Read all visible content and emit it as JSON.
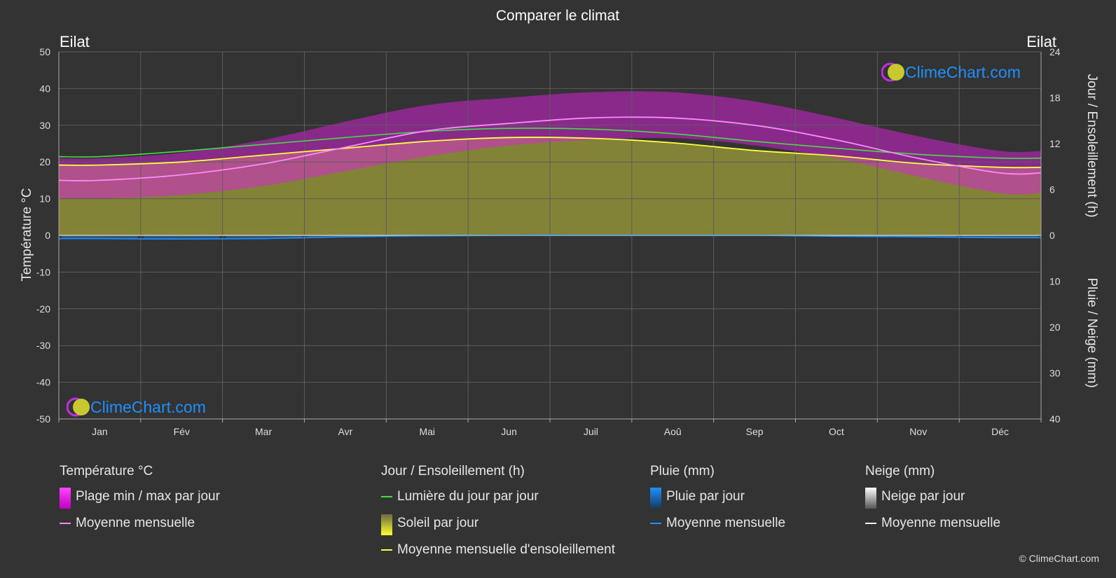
{
  "title": "Comparer le climat",
  "location_left": "Eilat",
  "location_right": "Eilat",
  "logo_text": "ClimeChart.com",
  "copyright": "© ClimeChart.com",
  "colors": {
    "background": "#333333",
    "temp_range": "#e020e0",
    "temp_mean": "#ff88ff",
    "daylight": "#44dd44",
    "sunshine_fill": "#b5b53a",
    "sunshine_mean": "#ffff44",
    "rain": "#1e90ff",
    "snow": "#ffffff"
  },
  "legend": {
    "temperature": {
      "heading": "Température °C",
      "range": "Plage min / max par jour",
      "mean": "Moyenne mensuelle"
    },
    "sun": {
      "heading": "Jour / Ensoleillement (h)",
      "daylight": "Lumière du jour par jour",
      "sunshine": "Soleil par jour",
      "sunshine_mean": "Moyenne mensuelle d'ensoleillement"
    },
    "rain": {
      "heading": "Pluie (mm)",
      "daily": "Pluie par jour",
      "mean": "Moyenne mensuelle"
    },
    "snow": {
      "heading": "Neige (mm)",
      "daily": "Neige par jour",
      "mean": "Moyenne mensuelle"
    }
  },
  "chart_data": {
    "type": "area",
    "title": "Comparer le climat",
    "categories": [
      "Jan",
      "Fév",
      "Mar",
      "Avr",
      "Mai",
      "Jun",
      "Juil",
      "Aoû",
      "Sep",
      "Oct",
      "Nov",
      "Déc"
    ],
    "y_left": {
      "label": "Température °C",
      "range": [
        -50,
        50
      ],
      "ticks": [
        50,
        40,
        30,
        20,
        10,
        0,
        -10,
        -20,
        -30,
        -40,
        -50
      ]
    },
    "y_right_top": {
      "label": "Jour / Ensoleillement (h)",
      "range": [
        0,
        24
      ],
      "ticks": [
        24,
        18,
        12,
        6,
        0
      ]
    },
    "y_right_bottom": {
      "label": "Pluie / Neige (mm)",
      "range": [
        0,
        40
      ],
      "ticks": [
        0,
        10,
        20,
        30,
        40
      ]
    },
    "grid": true,
    "series": [
      {
        "name": "Moyenne mensuelle",
        "group": "temperature",
        "unit": "°C",
        "values": [
          15.0,
          16.5,
          19.5,
          24.0,
          28.5,
          30.5,
          32.0,
          32.0,
          30.0,
          26.0,
          21.0,
          17.0
        ]
      },
      {
        "name": "Plage min / max par jour",
        "group": "temperature",
        "unit": "°C",
        "min": [
          10.0,
          11.0,
          13.5,
          17.5,
          21.5,
          24.5,
          26.0,
          26.5,
          24.5,
          21.0,
          16.0,
          11.5
        ],
        "max": [
          21.0,
          22.5,
          26.0,
          31.0,
          35.5,
          37.5,
          39.0,
          39.0,
          36.5,
          32.0,
          27.0,
          23.0
        ]
      },
      {
        "name": "Lumière du jour par jour",
        "group": "sun",
        "unit": "h",
        "values": [
          10.3,
          11.0,
          11.9,
          12.8,
          13.6,
          14.0,
          13.9,
          13.3,
          12.3,
          11.4,
          10.6,
          10.1
        ]
      },
      {
        "name": "Soleil par jour",
        "group": "sun",
        "unit": "h",
        "values": [
          9.2,
          9.6,
          10.5,
          11.4,
          12.3,
          12.8,
          12.7,
          12.1,
          11.1,
          10.4,
          9.4,
          8.9
        ]
      },
      {
        "name": "Moyenne mensuelle d'ensoleillement",
        "group": "sun",
        "unit": "h",
        "values": [
          9.2,
          9.6,
          10.5,
          11.4,
          12.3,
          12.8,
          12.7,
          12.1,
          11.1,
          10.4,
          9.4,
          8.9
        ]
      },
      {
        "name": "Pluie par jour",
        "group": "rain",
        "unit": "mm",
        "values": [
          0.7,
          0.8,
          0.7,
          0.3,
          0.1,
          0.0,
          0.0,
          0.0,
          0.0,
          0.2,
          0.3,
          0.5
        ]
      },
      {
        "name": "Moyenne mensuelle",
        "group": "rain",
        "unit": "mm",
        "values": [
          0.7,
          0.8,
          0.7,
          0.3,
          0.1,
          0.0,
          0.0,
          0.0,
          0.0,
          0.2,
          0.3,
          0.5
        ]
      },
      {
        "name": "Moyenne mensuelle",
        "group": "snow",
        "unit": "mm",
        "values": [
          0,
          0,
          0,
          0,
          0,
          0,
          0,
          0,
          0,
          0,
          0,
          0
        ]
      }
    ]
  }
}
